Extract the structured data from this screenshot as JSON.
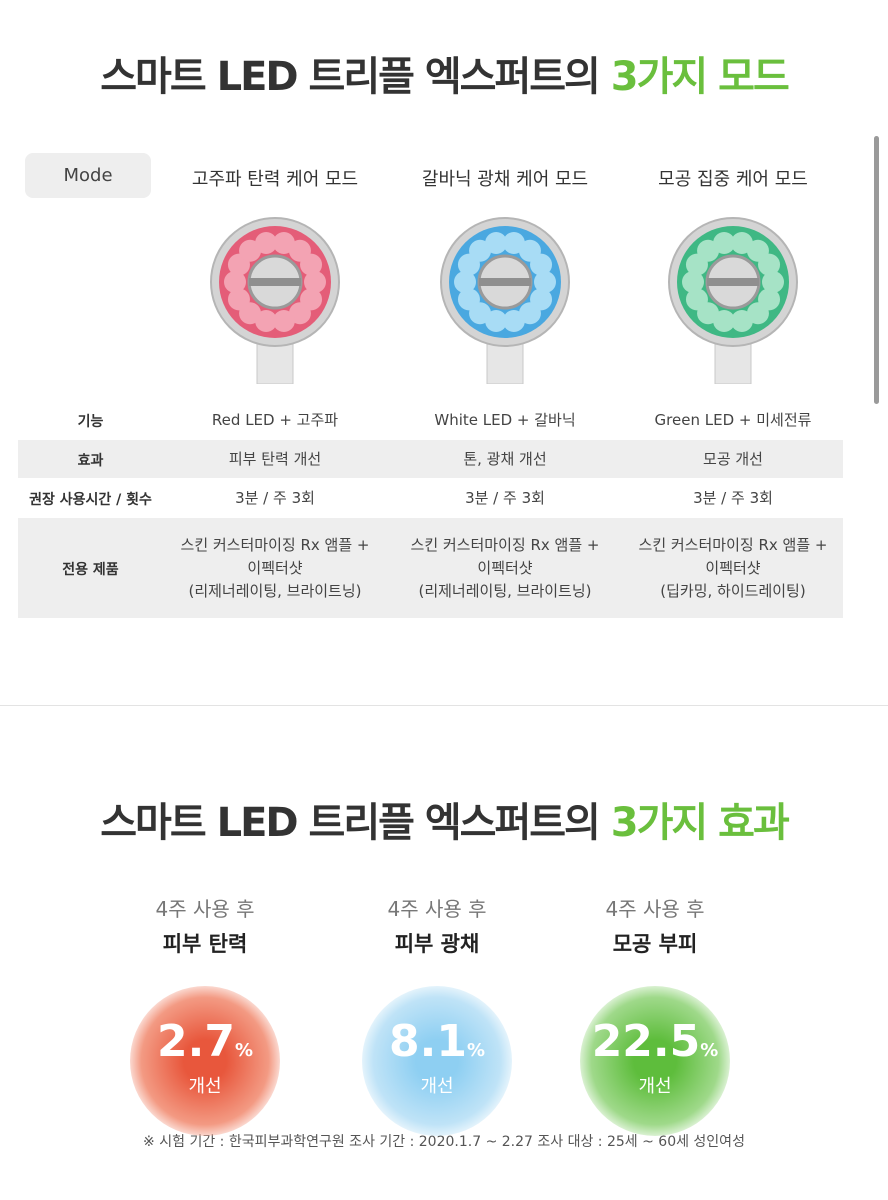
{
  "section1": {
    "title": "스마트 LED 트리플 엑스퍼트의",
    "title_highlight": "3가지 모드"
  },
  "table": {
    "header_label": "Mode",
    "modes": [
      "고주파 탄력 케어 모드",
      "갈바닉 광채 케어 모드",
      "모공 집중 케어 모드"
    ],
    "rows": [
      {
        "label": "기능",
        "cells": [
          [
            "Red LED + 고주파"
          ],
          [
            "White LED + 갈바닉"
          ],
          [
            "Green LED + 미세전류"
          ]
        ]
      },
      {
        "label": "효과",
        "cells": [
          [
            "피부 탄력 개선"
          ],
          [
            "톤, 광채 개선"
          ],
          [
            "모공 개선"
          ]
        ]
      },
      {
        "label": "권장 사용시간 / 횟수",
        "cells": [
          [
            "3분 / 주 3회"
          ],
          [
            "3분 / 주 3회"
          ],
          [
            "3분 / 주 3회"
          ]
        ]
      },
      {
        "label": "전용 제품",
        "cells": [
          [
            "스킨 커스터마이징 Rx 앰플 +",
            "이펙터샷",
            "(리제너레이팅, 브라이트닝)"
          ],
          [
            "스킨 커스터마이징 Rx 앰플 +",
            "이펙터샷",
            "(리제너레이팅, 브라이트닝)"
          ],
          [
            "스킨 커스터마이징 Rx 앰플 +",
            "이펙터샷",
            "(딥카밍, 하이드레이팅)"
          ]
        ]
      }
    ]
  },
  "section2": {
    "title": "스마트 LED 트리플 엑스퍼트의",
    "title_highlight": "3가지 효과",
    "stats": [
      {
        "period": "4주 사용 후",
        "label": "피부 탄력",
        "value": 2.7,
        "unit": "%",
        "note": "개선"
      },
      {
        "period": "4주 사용 후",
        "label": "피부 광채",
        "value": 8.1,
        "unit": "%",
        "note": "개선"
      },
      {
        "period": "4주 사용 후",
        "label": "모공 부피",
        "value": 22.5,
        "unit": "%",
        "note": "개선"
      }
    ],
    "footnote": "※ 시험 기간 : 한국피부과학연구원  조사 기간 : 2020.1.7 ~ 2.27  조사 대상 : 25세 ~ 60세 성인여성"
  }
}
